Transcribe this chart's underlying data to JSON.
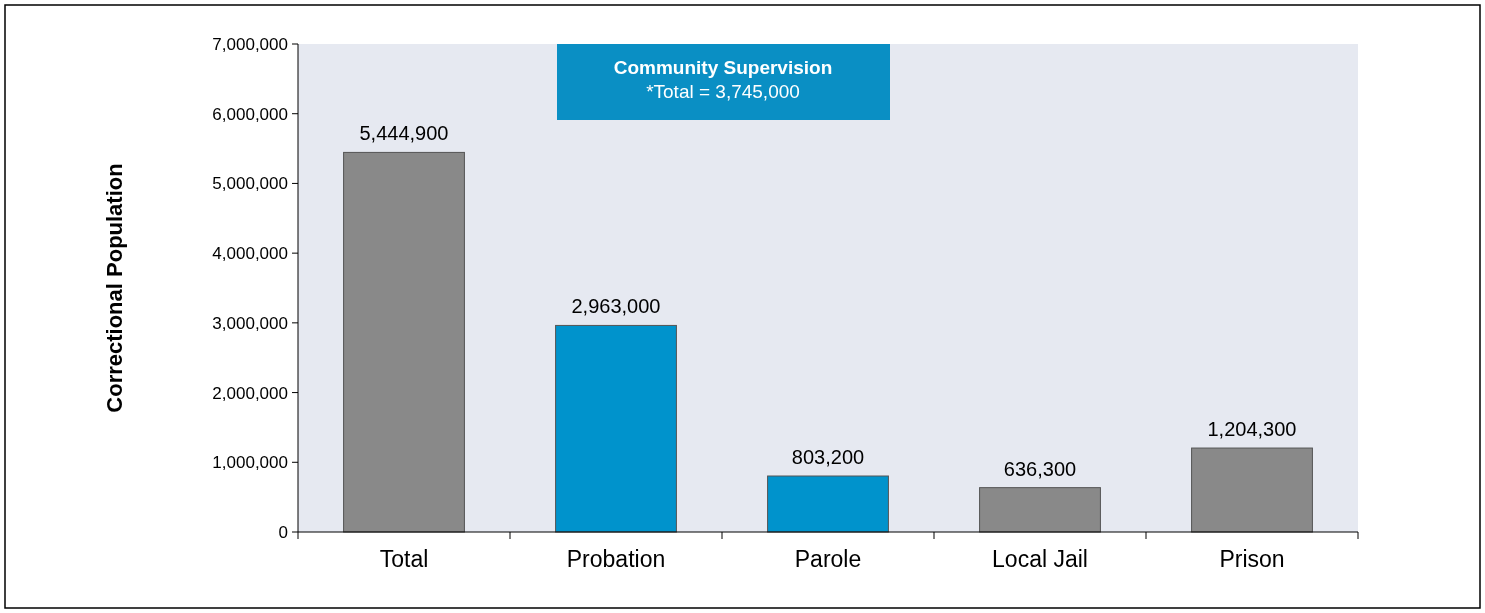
{
  "chart_data": {
    "type": "bar",
    "ylabel": "Correctional Population",
    "categories": [
      "Total",
      "Probation",
      "Parole",
      "Local Jail",
      "Prison"
    ],
    "values": [
      5444900,
      2963000,
      803200,
      636300,
      1204300
    ],
    "colors": [
      "#898989",
      "#0093cc",
      "#0093cc",
      "#898989",
      "#898989"
    ],
    "ylim": [
      0,
      7000000
    ],
    "yticks": [
      {
        "value": 0,
        "label": "0"
      },
      {
        "value": 1000000,
        "label": "1,000,000"
      },
      {
        "value": 2000000,
        "label": "2,000,000"
      },
      {
        "value": 3000000,
        "label": "3,000,000"
      },
      {
        "value": 4000000,
        "label": "4,000,000"
      },
      {
        "value": 5000000,
        "label": "5,000,000"
      },
      {
        "value": 6000000,
        "label": "6,000,000"
      },
      {
        "value": 7000000,
        "label": "7,000,000"
      }
    ],
    "value_labels": [
      "5,444,900",
      "2,963,000",
      "803,200",
      "636,300",
      "1,204,300"
    ],
    "annotations": [
      "Community Supervision",
      "*Total = 3,745,000"
    ],
    "grid": false
  }
}
